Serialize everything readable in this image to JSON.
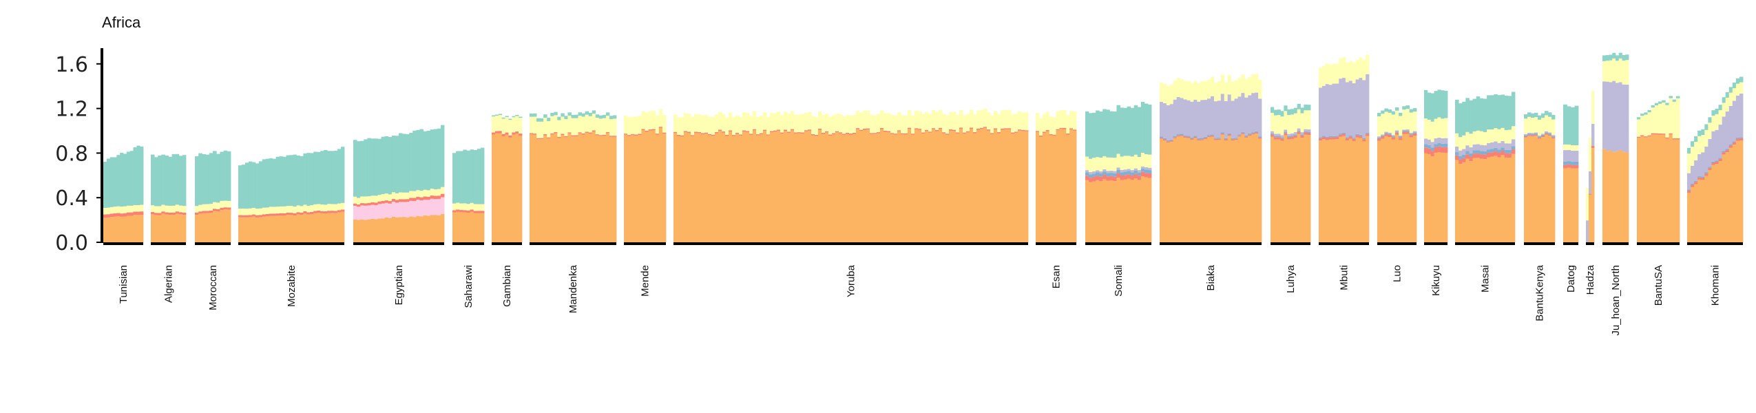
{
  "chart_data": {
    "type": "bar",
    "subtype": "stacked-admixture",
    "title": "Africa",
    "ylim": [
      0,
      1.7
    ],
    "yticks": [
      "0.0",
      "0.4",
      "0.8",
      "1.2",
      "1.6"
    ],
    "grid": false,
    "legend": "none",
    "component_colors": {
      "orange": "#fdb462",
      "green": "#8dd3c7",
      "yellow": "#ffffb3",
      "purple": "#bebada",
      "red": "#fb8072",
      "blue": "#80b1d3",
      "pink": "#fccde5",
      "lightgreen": "#b3de69"
    },
    "categories": [
      "Tunisian",
      "Algerian",
      "Moroccan",
      "Mozabite",
      "Egyptian",
      "Saharawi",
      "Gambian",
      "Mandenka",
      "Mende",
      "Yoruba",
      "Esan",
      "Somali",
      "Biaka",
      "Luhya",
      "Mbuti",
      "Luo",
      "Kikuyu",
      "Masai",
      "BantuKenya",
      "Datog",
      "Hadza",
      "Ju_hoan_North",
      "BantuSA",
      "Khomani"
    ],
    "series": [
      {
        "name": "",
        "color": "orange",
        "start": [
          0.22,
          0.25,
          0.25,
          0.22,
          0.2,
          0.27,
          0.95,
          0.95,
          0.97,
          0.97,
          0.97,
          0.55,
          0.92,
          0.93,
          0.92,
          0.93,
          0.78,
          0.72,
          0.94,
          0.65,
          0.0,
          0.83,
          0.95,
          0.45
        ],
        "end": [
          0.25,
          0.25,
          0.3,
          0.27,
          0.25,
          0.27,
          0.97,
          0.97,
          1.0,
          1.0,
          1.0,
          0.58,
          0.95,
          0.95,
          0.93,
          0.95,
          0.8,
          0.78,
          0.95,
          0.65,
          0.85,
          0.83,
          0.95,
          0.93
        ]
      },
      {
        "name": "",
        "color": "pink",
        "start": [
          0.0,
          0.0,
          0.0,
          0.0,
          0.12,
          0.0,
          0.0,
          0.0,
          0.0,
          0.0,
          0.0,
          0.0,
          0.0,
          0.0,
          0.0,
          0.0,
          0.0,
          0.0,
          0.0,
          0.0,
          0.0,
          0.0,
          0.0,
          0.0
        ],
        "end": [
          0.0,
          0.0,
          0.0,
          0.0,
          0.15,
          0.0,
          0.0,
          0.0,
          0.0,
          0.0,
          0.0,
          0.0,
          0.0,
          0.0,
          0.0,
          0.0,
          0.0,
          0.0,
          0.0,
          0.0,
          0.0,
          0.0,
          0.0,
          0.0
        ]
      },
      {
        "name": "",
        "color": "red",
        "start": [
          0.03,
          0.02,
          0.02,
          0.02,
          0.02,
          0.02,
          0.02,
          0.01,
          0.01,
          0.01,
          0.01,
          0.04,
          0.01,
          0.02,
          0.02,
          0.02,
          0.05,
          0.04,
          0.01,
          0.03,
          0.0,
          0.0,
          0.01,
          0.02
        ],
        "end": [
          0.03,
          0.02,
          0.02,
          0.02,
          0.03,
          0.02,
          0.02,
          0.01,
          0.01,
          0.01,
          0.01,
          0.04,
          0.01,
          0.02,
          0.02,
          0.02,
          0.05,
          0.04,
          0.01,
          0.03,
          0.02,
          0.0,
          0.01,
          0.02
        ]
      },
      {
        "name": "",
        "color": "blue",
        "start": [
          0.0,
          0.0,
          0.0,
          0.0,
          0.0,
          0.0,
          0.0,
          0.0,
          0.0,
          0.0,
          0.0,
          0.03,
          0.01,
          0.01,
          0.01,
          0.01,
          0.03,
          0.03,
          0.01,
          0.03,
          0.0,
          0.0,
          0.0,
          0.01
        ],
        "end": [
          0.0,
          0.0,
          0.0,
          0.0,
          0.0,
          0.0,
          0.0,
          0.0,
          0.0,
          0.0,
          0.0,
          0.03,
          0.01,
          0.01,
          0.01,
          0.01,
          0.03,
          0.03,
          0.01,
          0.03,
          0.0,
          0.0,
          0.0,
          0.01
        ]
      },
      {
        "name": "",
        "color": "purple",
        "start": [
          0.0,
          0.0,
          0.0,
          0.0,
          0.0,
          0.0,
          0.0,
          0.0,
          0.0,
          0.0,
          0.0,
          0.02,
          0.32,
          0.02,
          0.45,
          0.01,
          0.05,
          0.05,
          0.01,
          0.1,
          0.2,
          0.62,
          0.0,
          0.15
        ],
        "end": [
          0.0,
          0.0,
          0.0,
          0.0,
          0.0,
          0.0,
          0.0,
          0.0,
          0.0,
          0.0,
          0.0,
          0.02,
          0.35,
          0.02,
          0.52,
          0.01,
          0.05,
          0.06,
          0.01,
          0.1,
          0.2,
          0.62,
          0.0,
          0.4
        ]
      },
      {
        "name": "",
        "color": "yellow",
        "start": [
          0.06,
          0.06,
          0.06,
          0.06,
          0.06,
          0.06,
          0.14,
          0.15,
          0.16,
          0.16,
          0.16,
          0.12,
          0.17,
          0.17,
          0.18,
          0.18,
          0.18,
          0.12,
          0.14,
          0.05,
          0.3,
          0.18,
          0.16,
          0.18
        ],
        "end": [
          0.06,
          0.06,
          0.06,
          0.06,
          0.06,
          0.06,
          0.14,
          0.15,
          0.16,
          0.16,
          0.16,
          0.12,
          0.17,
          0.17,
          0.18,
          0.18,
          0.18,
          0.12,
          0.14,
          0.05,
          0.3,
          0.22,
          0.35,
          0.1
        ]
      },
      {
        "name": "",
        "color": "green",
        "start": [
          0.42,
          0.45,
          0.45,
          0.4,
          0.5,
          0.46,
          0.01,
          0.03,
          0.0,
          0.0,
          0.0,
          0.4,
          0.0,
          0.05,
          0.0,
          0.03,
          0.25,
          0.3,
          0.04,
          0.35,
          0.0,
          0.05,
          0.02,
          0.05
        ],
        "end": [
          0.53,
          0.45,
          0.45,
          0.5,
          0.55,
          0.5,
          0.01,
          0.03,
          0.0,
          0.0,
          0.0,
          0.45,
          0.0,
          0.05,
          0.0,
          0.03,
          0.25,
          0.3,
          0.04,
          0.35,
          0.0,
          0.05,
          0.02,
          0.05
        ]
      }
    ]
  }
}
